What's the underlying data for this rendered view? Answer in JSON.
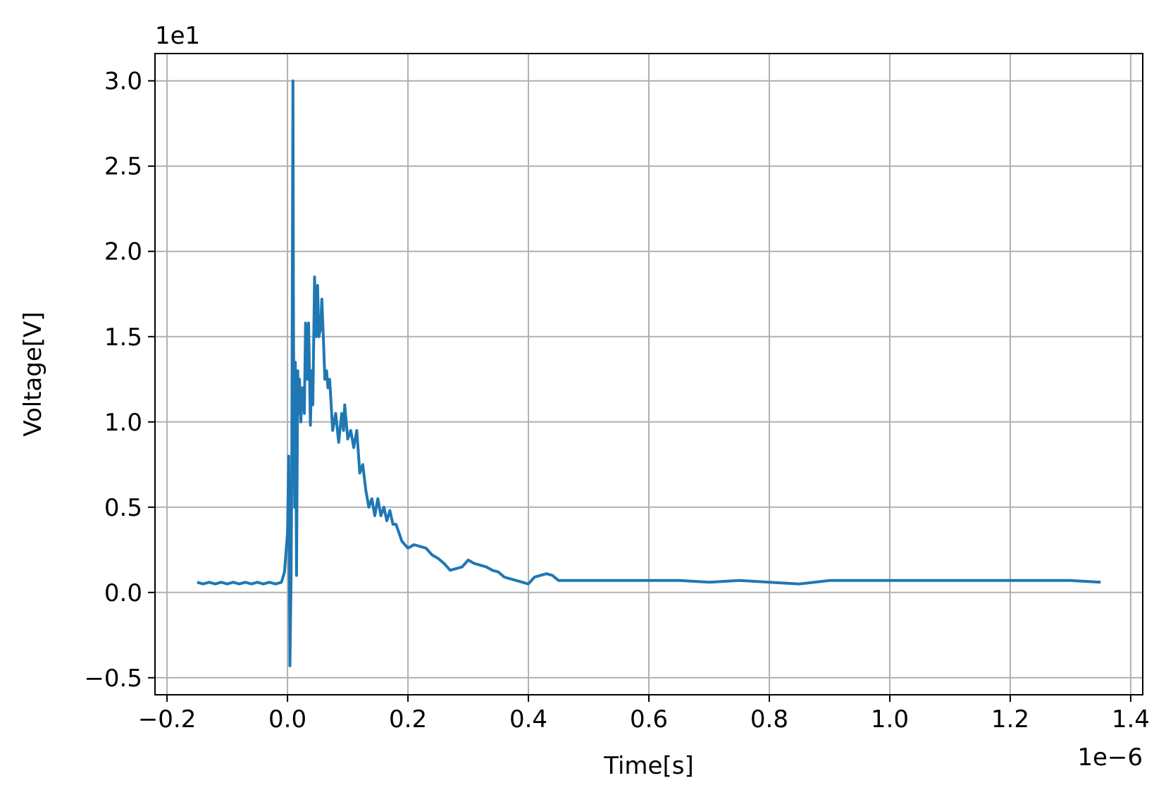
{
  "chart_data": {
    "type": "line",
    "xlabel": "Time[s]",
    "ylabel": "Voltage[V]",
    "x_offset_label": "1e−6",
    "y_offset_label": "1e1",
    "xlim": [
      -0.22,
      1.42
    ],
    "ylim": [
      -0.6,
      3.16
    ],
    "grid": true,
    "x_ticks": [
      -0.2,
      0.0,
      0.2,
      0.4,
      0.6,
      0.8,
      1.0,
      1.2,
      1.4
    ],
    "x_tick_labels": [
      "−0.2",
      "0.0",
      "0.2",
      "0.4",
      "0.6",
      "0.8",
      "1.0",
      "1.2",
      "1.4"
    ],
    "y_ticks": [
      -0.5,
      0.0,
      0.5,
      1.0,
      1.5,
      2.0,
      2.5,
      3.0
    ],
    "y_tick_labels": [
      "−0.5",
      "0.0",
      "0.5",
      "1.0",
      "1.5",
      "2.0",
      "2.5",
      "3.0"
    ],
    "series": [
      {
        "color": "#1f77b4",
        "x": [
          -0.15,
          -0.14,
          -0.13,
          -0.12,
          -0.11,
          -0.1,
          -0.09,
          -0.08,
          -0.07,
          -0.06,
          -0.05,
          -0.04,
          -0.03,
          -0.02,
          -0.01,
          -0.005,
          0.0,
          0.002,
          0.003,
          0.004,
          0.006,
          0.007,
          0.009,
          0.01,
          0.012,
          0.013,
          0.015,
          0.017,
          0.019,
          0.02,
          0.022,
          0.025,
          0.028,
          0.03,
          0.033,
          0.035,
          0.038,
          0.04,
          0.042,
          0.045,
          0.047,
          0.05,
          0.052,
          0.055,
          0.057,
          0.06,
          0.062,
          0.065,
          0.067,
          0.07,
          0.075,
          0.08,
          0.085,
          0.09,
          0.093,
          0.095,
          0.1,
          0.105,
          0.11,
          0.115,
          0.12,
          0.125,
          0.13,
          0.135,
          0.14,
          0.145,
          0.15,
          0.155,
          0.16,
          0.165,
          0.17,
          0.175,
          0.18,
          0.19,
          0.2,
          0.21,
          0.22,
          0.23,
          0.24,
          0.25,
          0.26,
          0.27,
          0.28,
          0.29,
          0.3,
          0.31,
          0.32,
          0.33,
          0.34,
          0.35,
          0.36,
          0.37,
          0.38,
          0.39,
          0.4,
          0.41,
          0.42,
          0.43,
          0.44,
          0.45,
          0.47,
          0.5,
          0.55,
          0.6,
          0.65,
          0.7,
          0.75,
          0.8,
          0.85,
          0.9,
          0.95,
          1.0,
          1.05,
          1.1,
          1.15,
          1.2,
          1.25,
          1.3,
          1.35
        ],
        "y": [
          0.06,
          0.05,
          0.06,
          0.05,
          0.06,
          0.05,
          0.06,
          0.05,
          0.06,
          0.05,
          0.06,
          0.05,
          0.06,
          0.05,
          0.06,
          0.12,
          0.35,
          0.8,
          0.3,
          -0.43,
          0.1,
          0.7,
          3.0,
          1.5,
          0.5,
          1.35,
          0.1,
          1.3,
          1.05,
          1.25,
          1.0,
          1.2,
          1.05,
          1.58,
          1.25,
          1.58,
          0.98,
          1.3,
          1.1,
          1.85,
          1.5,
          1.8,
          1.5,
          1.55,
          1.72,
          1.45,
          1.25,
          1.3,
          1.2,
          1.25,
          0.95,
          1.05,
          0.88,
          1.05,
          0.95,
          1.1,
          0.9,
          0.95,
          0.85,
          0.95,
          0.7,
          0.75,
          0.6,
          0.5,
          0.55,
          0.45,
          0.55,
          0.45,
          0.5,
          0.42,
          0.48,
          0.4,
          0.4,
          0.3,
          0.26,
          0.28,
          0.27,
          0.26,
          0.22,
          0.2,
          0.17,
          0.13,
          0.14,
          0.15,
          0.19,
          0.17,
          0.16,
          0.15,
          0.13,
          0.12,
          0.09,
          0.08,
          0.07,
          0.06,
          0.05,
          0.09,
          0.1,
          0.11,
          0.1,
          0.07,
          0.07,
          0.07,
          0.07,
          0.07,
          0.07,
          0.06,
          0.07,
          0.06,
          0.05,
          0.07,
          0.07,
          0.07,
          0.07,
          0.07,
          0.07,
          0.07,
          0.07,
          0.07,
          0.06
        ]
      }
    ]
  }
}
